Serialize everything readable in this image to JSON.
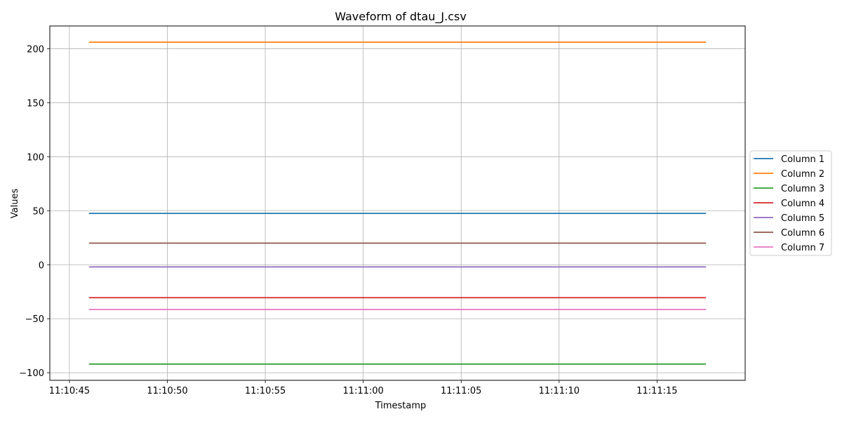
{
  "chart_data": {
    "type": "line",
    "title": "Waveform of dtau_J.csv",
    "xlabel": "Timestamp",
    "ylabel": "Values",
    "x_ticks": [
      "11:10:45",
      "11:10:50",
      "11:10:55",
      "11:11:00",
      "11:11:05",
      "11:11:10",
      "11:11:15"
    ],
    "x_tick_values": [
      -1,
      4,
      9,
      14,
      19,
      24,
      29
    ],
    "xlim": [
      -2,
      33.5
    ],
    "ylim": [
      -107,
      221
    ],
    "y_ticks": [
      -100,
      -50,
      0,
      50,
      100,
      150,
      200
    ],
    "y_tick_labels": [
      "−100",
      "−50",
      "0",
      "50",
      "100",
      "150",
      "200"
    ],
    "x": [
      0,
      31.5
    ],
    "grid": true,
    "legend_position": "right-outside",
    "series": [
      {
        "name": "Column 1",
        "color": "#1f77b4",
        "values": [
          47.5,
          47.5
        ]
      },
      {
        "name": "Column 2",
        "color": "#ff7f0e",
        "values": [
          206.0,
          206.0
        ]
      },
      {
        "name": "Column 3",
        "color": "#2ca02c",
        "values": [
          -92.0,
          -92.0
        ]
      },
      {
        "name": "Column 4",
        "color": "#d62728",
        "values": [
          -30.5,
          -30.5
        ]
      },
      {
        "name": "Column 5",
        "color": "#9467bd",
        "values": [
          -2.0,
          -2.0
        ]
      },
      {
        "name": "Column 6",
        "color": "#8c564b",
        "values": [
          20.0,
          20.0
        ]
      },
      {
        "name": "Column 7",
        "color": "#e377c2",
        "values": [
          -41.5,
          -41.5
        ]
      }
    ]
  }
}
